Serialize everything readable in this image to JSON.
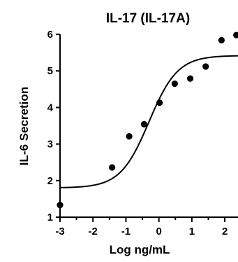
{
  "chart_data": {
    "type": "scatter",
    "title": "IL-17 (IL-17A)",
    "xlabel": "Log ng/mL",
    "ylabel": "IL-6 Secretion",
    "xlim": [
      -3,
      2.4
    ],
    "ylim": [
      1,
      6
    ],
    "x_ticks": [
      "-3",
      "-2",
      "-1",
      "0",
      "1",
      "2"
    ],
    "y_ticks": [
      "1",
      "2",
      "3",
      "4",
      "5",
      "6"
    ],
    "grid": false,
    "legend": "none",
    "series": [
      {
        "points": [
          {
            "x": -3.0,
            "y": 1.33
          },
          {
            "x": -1.42,
            "y": 2.36
          },
          {
            "x": -0.9,
            "y": 3.21
          },
          {
            "x": -0.45,
            "y": 3.54
          },
          {
            "x": 0.02,
            "y": 4.13
          },
          {
            "x": 0.48,
            "y": 4.65
          },
          {
            "x": 0.95,
            "y": 4.79
          },
          {
            "x": 1.42,
            "y": 5.12
          },
          {
            "x": 1.9,
            "y": 5.84
          },
          {
            "x": 2.35,
            "y": 5.98
          }
        ]
      }
    ],
    "fit_curve": {
      "model": "4PL",
      "bottom": 1.8,
      "top": 5.42,
      "logEC50": -0.3,
      "hill_slope": 1.0
    },
    "colors": {
      "marker": "#000000",
      "curve": "#000000",
      "axis": "#000000"
    }
  }
}
